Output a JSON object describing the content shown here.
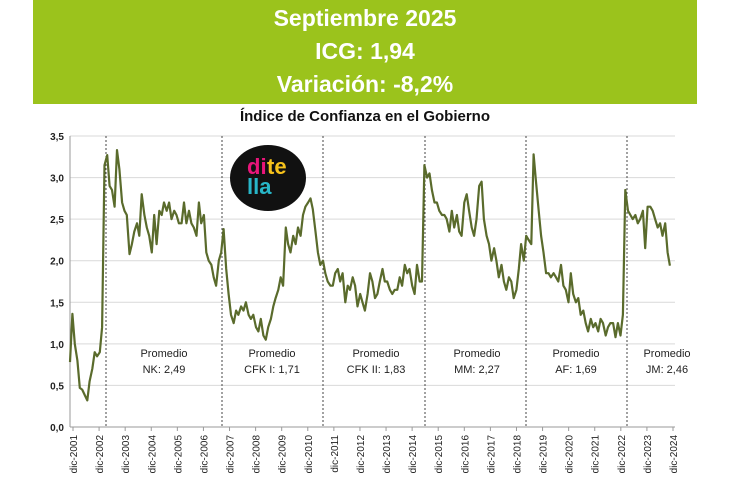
{
  "header": {
    "line1": "Septiembre 2025",
    "line2": "ICG: 1,94",
    "line3": "Variación: -8,2%"
  },
  "colors": {
    "banner": "#9bc31c",
    "series": "#5a6b2c"
  },
  "logo": {
    "icon": "ditella-logo",
    "text": [
      "di",
      "te",
      "lla"
    ]
  },
  "chart_data": {
    "type": "line",
    "title": "Índice de Confianza en el Gobierno",
    "xlabel": "",
    "ylabel": "",
    "ylim": [
      0,
      3.5
    ],
    "yticks": [
      "0,0",
      "0,5",
      "1,0",
      "1,5",
      "2,0",
      "2,5",
      "3,0",
      "3,5"
    ],
    "grid": true,
    "x_ticks": [
      "dic-2001",
      "dic-2002",
      "dic-2003",
      "dic-2004",
      "dic-2005",
      "dic-2006",
      "dic-2007",
      "dic-2008",
      "dic-2009",
      "dic-2010",
      "dic-2011",
      "dic-2012",
      "dic-2013",
      "dic-2014",
      "dic-2015",
      "dic-2016",
      "dic-2017",
      "dic-2018",
      "dic-2019",
      "dic-2020",
      "dic-2021",
      "dic-2022",
      "dic-2023",
      "dic-2024"
    ],
    "period_breaks": [
      2002.38,
      2007.96,
      2011.96,
      2015.96,
      2019.96,
      2023.96
    ],
    "periods": [
      {
        "line1": "Promedio",
        "line2": "NK: 2,49",
        "x": 2005.2
      },
      {
        "line1": "Promedio",
        "line2": "CFK I: 1,71",
        "x": 2009.4
      },
      {
        "line1": "Promedio",
        "line2": "CFK II: 1,83",
        "x": 2013.4
      },
      {
        "line1": "Promedio",
        "line2": "MM: 2,27",
        "x": 2017.4
      },
      {
        "line1": "Promedio",
        "line2": "AF: 1,69",
        "x": 2021.3
      },
      {
        "line1": "Promedio",
        "line2": "JM: 2,46",
        "x": 2025.1
      }
    ],
    "series": [
      {
        "values": [
          [
            2001.92,
            0.78
          ],
          [
            2002.0,
            1.36
          ],
          [
            2002.08,
            1.0
          ],
          [
            2002.17,
            0.8
          ],
          [
            2002.25,
            0.47
          ],
          [
            2002.33,
            0.45
          ],
          [
            2002.42,
            0.38
          ],
          [
            2002.5,
            0.32
          ],
          [
            2002.58,
            0.55
          ],
          [
            2002.67,
            0.7
          ],
          [
            2002.75,
            0.9
          ],
          [
            2002.83,
            0.85
          ],
          [
            2002.92,
            0.9
          ],
          [
            2003.0,
            1.2
          ],
          [
            2003.08,
            3.15
          ],
          [
            2003.17,
            3.27
          ],
          [
            2003.25,
            2.9
          ],
          [
            2003.33,
            2.85
          ],
          [
            2003.42,
            2.65
          ],
          [
            2003.5,
            3.33
          ],
          [
            2003.58,
            3.1
          ],
          [
            2003.67,
            2.7
          ],
          [
            2003.75,
            2.6
          ],
          [
            2003.83,
            2.55
          ],
          [
            2003.92,
            2.08
          ],
          [
            2004.0,
            2.2
          ],
          [
            2004.08,
            2.35
          ],
          [
            2004.17,
            2.45
          ],
          [
            2004.25,
            2.3
          ],
          [
            2004.33,
            2.8
          ],
          [
            2004.42,
            2.55
          ],
          [
            2004.5,
            2.4
          ],
          [
            2004.58,
            2.3
          ],
          [
            2004.67,
            2.1
          ],
          [
            2004.75,
            2.55
          ],
          [
            2004.83,
            2.2
          ],
          [
            2004.92,
            2.6
          ],
          [
            2005.0,
            2.55
          ],
          [
            2005.08,
            2.7
          ],
          [
            2005.17,
            2.6
          ],
          [
            2005.25,
            2.7
          ],
          [
            2005.33,
            2.5
          ],
          [
            2005.42,
            2.6
          ],
          [
            2005.5,
            2.55
          ],
          [
            2005.58,
            2.45
          ],
          [
            2005.67,
            2.45
          ],
          [
            2005.75,
            2.7
          ],
          [
            2005.83,
            2.45
          ],
          [
            2005.92,
            2.6
          ],
          [
            2006.0,
            2.45
          ],
          [
            2006.08,
            2.4
          ],
          [
            2006.17,
            2.3
          ],
          [
            2006.25,
            2.7
          ],
          [
            2006.33,
            2.45
          ],
          [
            2006.42,
            2.55
          ],
          [
            2006.5,
            2.1
          ],
          [
            2006.58,
            2.0
          ],
          [
            2006.67,
            1.95
          ],
          [
            2006.75,
            1.8
          ],
          [
            2006.83,
            1.7
          ],
          [
            2006.92,
            2.0
          ],
          [
            2007.0,
            2.1
          ],
          [
            2007.08,
            2.38
          ],
          [
            2007.17,
            1.9
          ],
          [
            2007.25,
            1.6
          ],
          [
            2007.33,
            1.35
          ],
          [
            2007.42,
            1.25
          ],
          [
            2007.5,
            1.4
          ],
          [
            2007.58,
            1.35
          ],
          [
            2007.67,
            1.45
          ],
          [
            2007.75,
            1.4
          ],
          [
            2007.83,
            1.5
          ],
          [
            2007.92,
            1.35
          ],
          [
            2008.0,
            1.3
          ],
          [
            2008.08,
            1.35
          ],
          [
            2008.17,
            1.2
          ],
          [
            2008.25,
            1.15
          ],
          [
            2008.33,
            1.3
          ],
          [
            2008.42,
            1.1
          ],
          [
            2008.5,
            1.05
          ],
          [
            2008.58,
            1.2
          ],
          [
            2008.67,
            1.3
          ],
          [
            2008.75,
            1.45
          ],
          [
            2008.83,
            1.55
          ],
          [
            2008.92,
            1.65
          ],
          [
            2009.0,
            1.8
          ],
          [
            2009.08,
            1.7
          ],
          [
            2009.17,
            2.4
          ],
          [
            2009.25,
            2.2
          ],
          [
            2009.33,
            2.1
          ],
          [
            2009.42,
            2.3
          ],
          [
            2009.5,
            2.2
          ],
          [
            2009.58,
            2.4
          ],
          [
            2009.67,
            2.3
          ],
          [
            2009.75,
            2.55
          ],
          [
            2009.83,
            2.65
          ],
          [
            2009.92,
            2.7
          ],
          [
            2010.0,
            2.75
          ],
          [
            2010.08,
            2.62
          ],
          [
            2010.17,
            2.35
          ],
          [
            2010.25,
            2.1
          ],
          [
            2010.33,
            1.95
          ],
          [
            2010.42,
            2.0
          ],
          [
            2010.5,
            1.85
          ],
          [
            2010.58,
            1.75
          ],
          [
            2010.67,
            1.7
          ],
          [
            2010.75,
            1.7
          ],
          [
            2010.83,
            1.85
          ],
          [
            2010.92,
            1.9
          ],
          [
            2011.0,
            1.75
          ],
          [
            2011.08,
            1.85
          ],
          [
            2011.17,
            1.5
          ],
          [
            2011.25,
            1.7
          ],
          [
            2011.33,
            1.65
          ],
          [
            2011.42,
            1.8
          ],
          [
            2011.5,
            1.7
          ],
          [
            2011.58,
            1.45
          ],
          [
            2011.67,
            1.6
          ],
          [
            2011.75,
            1.5
          ],
          [
            2011.83,
            1.4
          ],
          [
            2011.92,
            1.6
          ],
          [
            2012.0,
            1.85
          ],
          [
            2012.08,
            1.75
          ],
          [
            2012.17,
            1.55
          ],
          [
            2012.25,
            1.6
          ],
          [
            2012.33,
            1.75
          ],
          [
            2012.42,
            1.9
          ],
          [
            2012.5,
            1.75
          ],
          [
            2012.58,
            1.75
          ],
          [
            2012.67,
            1.65
          ],
          [
            2012.75,
            1.6
          ],
          [
            2012.83,
            1.65
          ],
          [
            2012.92,
            1.65
          ],
          [
            2013.0,
            1.8
          ],
          [
            2013.08,
            1.7
          ],
          [
            2013.17,
            1.95
          ],
          [
            2013.25,
            1.85
          ],
          [
            2013.33,
            1.9
          ],
          [
            2013.42,
            1.7
          ],
          [
            2013.5,
            1.6
          ],
          [
            2013.58,
            1.95
          ],
          [
            2013.67,
            1.75
          ],
          [
            2013.75,
            1.75
          ],
          [
            2013.83,
            3.15
          ],
          [
            2013.92,
            3.0
          ],
          [
            2014.0,
            3.05
          ],
          [
            2014.08,
            2.85
          ],
          [
            2014.17,
            2.7
          ],
          [
            2014.25,
            2.7
          ],
          [
            2014.33,
            2.6
          ],
          [
            2014.42,
            2.55
          ],
          [
            2014.5,
            2.55
          ],
          [
            2014.58,
            2.5
          ],
          [
            2014.67,
            2.35
          ],
          [
            2014.75,
            2.6
          ],
          [
            2014.83,
            2.4
          ],
          [
            2014.92,
            2.55
          ],
          [
            2015.0,
            2.35
          ],
          [
            2015.08,
            2.3
          ],
          [
            2015.17,
            2.7
          ],
          [
            2015.25,
            2.8
          ],
          [
            2015.33,
            2.6
          ],
          [
            2015.42,
            2.4
          ],
          [
            2015.5,
            2.3
          ],
          [
            2015.58,
            2.5
          ],
          [
            2015.67,
            2.9
          ],
          [
            2015.75,
            2.95
          ],
          [
            2015.83,
            2.5
          ],
          [
            2015.92,
            2.3
          ],
          [
            2016.0,
            2.2
          ],
          [
            2016.08,
            2.0
          ],
          [
            2016.17,
            2.15
          ],
          [
            2016.25,
            2.0
          ],
          [
            2016.33,
            1.8
          ],
          [
            2016.42,
            1.95
          ],
          [
            2016.5,
            1.75
          ],
          [
            2016.58,
            1.65
          ],
          [
            2016.67,
            1.8
          ],
          [
            2016.75,
            1.75
          ],
          [
            2016.83,
            1.55
          ],
          [
            2016.92,
            1.65
          ],
          [
            2017.0,
            1.9
          ],
          [
            2017.08,
            2.2
          ],
          [
            2017.17,
            2.0
          ],
          [
            2017.25,
            2.3
          ],
          [
            2017.33,
            2.25
          ],
          [
            2017.42,
            2.2
          ],
          [
            2017.5,
            3.28
          ],
          [
            2017.58,
            2.95
          ],
          [
            2017.67,
            2.6
          ],
          [
            2017.75,
            2.3
          ],
          [
            2017.83,
            2.1
          ],
          [
            2017.92,
            1.85
          ],
          [
            2018.0,
            1.85
          ],
          [
            2018.08,
            1.8
          ],
          [
            2018.17,
            1.85
          ],
          [
            2018.25,
            1.8
          ],
          [
            2018.33,
            1.75
          ],
          [
            2018.42,
            1.95
          ],
          [
            2018.5,
            1.7
          ],
          [
            2018.58,
            1.65
          ],
          [
            2018.67,
            1.5
          ],
          [
            2018.75,
            1.85
          ],
          [
            2018.83,
            1.6
          ],
          [
            2018.92,
            1.5
          ],
          [
            2019.0,
            1.55
          ],
          [
            2019.08,
            1.35
          ],
          [
            2019.17,
            1.4
          ],
          [
            2019.25,
            1.25
          ],
          [
            2019.33,
            1.15
          ],
          [
            2019.42,
            1.3
          ],
          [
            2019.5,
            1.2
          ],
          [
            2019.58,
            1.25
          ],
          [
            2019.67,
            1.15
          ],
          [
            2019.75,
            1.3
          ],
          [
            2019.83,
            1.25
          ],
          [
            2019.92,
            1.1
          ],
          [
            2020.0,
            1.2
          ],
          [
            2020.08,
            1.25
          ],
          [
            2020.17,
            1.25
          ],
          [
            2020.25,
            1.08
          ],
          [
            2020.33,
            1.25
          ],
          [
            2020.42,
            1.1
          ],
          [
            2020.5,
            1.35
          ],
          [
            2020.58,
            2.85
          ],
          [
            2020.67,
            2.6
          ],
          [
            2020.75,
            2.55
          ],
          [
            2020.83,
            2.5
          ],
          [
            2020.92,
            2.55
          ],
          [
            2021.0,
            2.45
          ],
          [
            2021.08,
            2.5
          ],
          [
            2021.17,
            2.6
          ],
          [
            2021.25,
            2.15
          ],
          [
            2021.33,
            2.65
          ],
          [
            2021.42,
            2.65
          ],
          [
            2021.5,
            2.6
          ],
          [
            2021.58,
            2.5
          ],
          [
            2021.67,
            2.4
          ],
          [
            2021.75,
            2.45
          ],
          [
            2021.83,
            2.3
          ],
          [
            2021.92,
            2.45
          ],
          [
            2022.0,
            2.1
          ],
          [
            2022.08,
            1.94
          ]
        ]
      }
    ]
  }
}
